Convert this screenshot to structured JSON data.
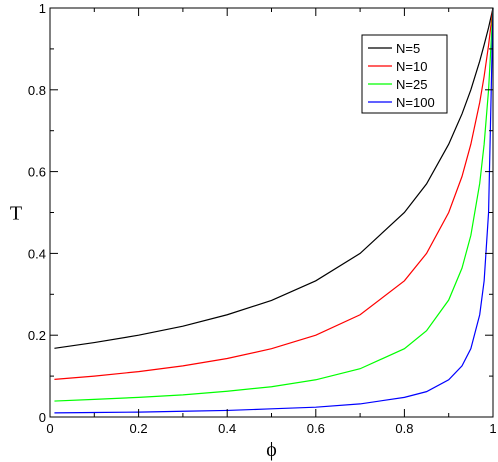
{
  "chart_data": {
    "type": "line",
    "xlabel": "ϕ",
    "ylabel": "T",
    "xlim": [
      0,
      1
    ],
    "ylim": [
      0,
      1
    ],
    "x_ticks": [
      "0",
      "0.2",
      "0.4",
      "0.6",
      "0.8",
      "1"
    ],
    "y_ticks": [
      "0",
      "0.2",
      "0.4",
      "0.6",
      "0.8",
      "1"
    ],
    "grid": false,
    "legend_position": "top-right",
    "x": [
      0.01,
      0.1,
      0.2,
      0.3,
      0.4,
      0.5,
      0.6,
      0.7,
      0.8,
      0.85,
      0.9,
      0.93,
      0.95,
      0.97,
      0.98,
      0.99,
      1.0
    ],
    "series": [
      {
        "name": "N=5",
        "color": "#000000",
        "values": [
          0.168,
          0.182,
          0.2,
          0.222,
          0.25,
          0.285,
          0.333,
          0.4,
          0.5,
          0.57,
          0.667,
          0.741,
          0.8,
          0.87,
          0.91,
          0.952,
          1.0
        ]
      },
      {
        "name": "N=10",
        "color": "#ff0000",
        "values": [
          0.092,
          0.1,
          0.111,
          0.125,
          0.143,
          0.167,
          0.2,
          0.25,
          0.333,
          0.4,
          0.5,
          0.588,
          0.667,
          0.769,
          0.833,
          0.909,
          1.0
        ]
      },
      {
        "name": "N=25",
        "color": "#00ff00",
        "values": [
          0.039,
          0.043,
          0.048,
          0.054,
          0.063,
          0.074,
          0.091,
          0.118,
          0.167,
          0.211,
          0.286,
          0.364,
          0.444,
          0.571,
          0.667,
          0.8,
          1.0
        ]
      },
      {
        "name": "N=100",
        "color": "#0000ff",
        "values": [
          0.01,
          0.011,
          0.012,
          0.014,
          0.016,
          0.02,
          0.024,
          0.032,
          0.048,
          0.062,
          0.091,
          0.125,
          0.167,
          0.25,
          0.333,
          0.5,
          1.0
        ]
      }
    ]
  }
}
